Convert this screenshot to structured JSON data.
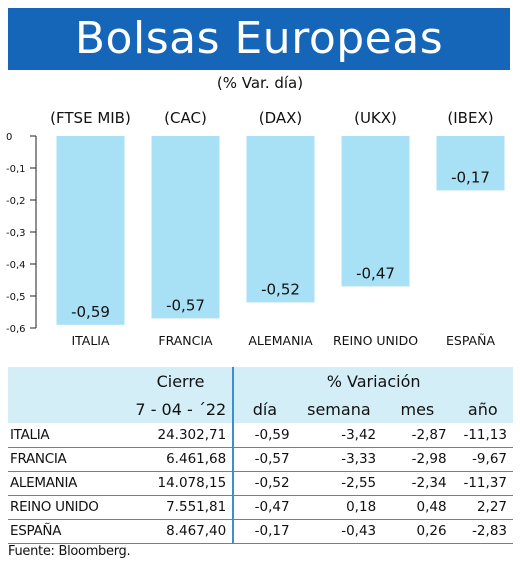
{
  "title": "Bolsas Europeas",
  "subtitle": "(% Var. día)",
  "chart_data": {
    "type": "bar",
    "index_labels": [
      "(FTSE MIB)",
      "(CAC)",
      "(DAX)",
      "(UKX)",
      "(IBEX)"
    ],
    "categories": [
      "ITALIA",
      "FRANCIA",
      "ALEMANIA",
      "REINO UNIDO",
      "ESPAÑA"
    ],
    "values": [
      -0.59,
      -0.57,
      -0.52,
      -0.47,
      -0.17
    ],
    "value_labels": [
      "-0,59",
      "-0,57",
      "-0,52",
      "-0,47",
      "-0,17"
    ],
    "yticks": [
      "0",
      "-0,1",
      "-0,2",
      "-0,3",
      "-0,4",
      "-0,5",
      "-0,6"
    ],
    "ylim": [
      -0.6,
      0
    ],
    "bar_color": "#a8e1f6"
  },
  "table": {
    "header_cierre": "Cierre",
    "header_variacion": "% Variación",
    "date": "7 - 04 - ´22",
    "sub_headers": [
      "día",
      "semana",
      "mes",
      "año"
    ],
    "rows": [
      {
        "country": "ITALIA",
        "cierre": "24.302,71",
        "dia": "-0,59",
        "semana": "-3,42",
        "mes": "-2,87",
        "anio": "-11,13"
      },
      {
        "country": "FRANCIA",
        "cierre": "6.461,68",
        "dia": "-0,57",
        "semana": "-3,33",
        "mes": "-2,98",
        "anio": "-9,67"
      },
      {
        "country": "ALEMANIA",
        "cierre": "14.078,15",
        "dia": "-0,52",
        "semana": "-2,55",
        "mes": "-2,34",
        "anio": "-11,37"
      },
      {
        "country": "REINO UNIDO",
        "cierre": "7.551,81",
        "dia": "-0,47",
        "semana": "0,18",
        "mes": "0,48",
        "anio": "2,27"
      },
      {
        "country": "ESPAÑA",
        "cierre": "8.467,40",
        "dia": "-0,17",
        "semana": "-0,43",
        "mes": "0,26",
        "anio": "-2,83"
      }
    ]
  },
  "source": "Fuente: Bloomberg.",
  "colors": {
    "banner": "#1565b8",
    "header_bg": "#d3eef7",
    "rule": "#3b8fcf"
  }
}
